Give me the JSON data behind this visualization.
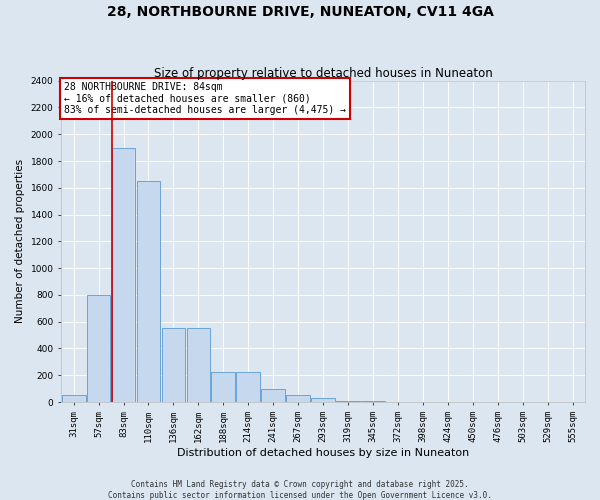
{
  "title": "28, NORTHBOURNE DRIVE, NUNEATON, CV11 4GA",
  "subtitle": "Size of property relative to detached houses in Nuneaton",
  "xlabel": "Distribution of detached houses by size in Nuneaton",
  "ylabel": "Number of detached properties",
  "categories": [
    "31sqm",
    "57sqm",
    "83sqm",
    "110sqm",
    "136sqm",
    "162sqm",
    "188sqm",
    "214sqm",
    "241sqm",
    "267sqm",
    "293sqm",
    "319sqm",
    "345sqm",
    "372sqm",
    "398sqm",
    "424sqm",
    "450sqm",
    "476sqm",
    "503sqm",
    "529sqm",
    "555sqm"
  ],
  "values": [
    50,
    800,
    1900,
    1650,
    550,
    550,
    225,
    225,
    100,
    55,
    30,
    8,
    5,
    3,
    2,
    1,
    1,
    0,
    0,
    0,
    0
  ],
  "bar_color": "#c5d8ee",
  "bar_edge_color": "#5b9bd5",
  "vline_color": "#cc0000",
  "annotation_text": "28 NORTHBOURNE DRIVE: 84sqm\n← 16% of detached houses are smaller (860)\n83% of semi-detached houses are larger (4,475) →",
  "annotation_box_facecolor": "#ffffff",
  "annotation_box_edgecolor": "#cc0000",
  "ylim": [
    0,
    2400
  ],
  "yticks": [
    0,
    200,
    400,
    600,
    800,
    1000,
    1200,
    1400,
    1600,
    1800,
    2000,
    2200,
    2400
  ],
  "background_color": "#dce6f1",
  "grid_color": "#ffffff",
  "footer_line1": "Contains HM Land Registry data © Crown copyright and database right 2025.",
  "footer_line2": "Contains public sector information licensed under the Open Government Licence v3.0.",
  "title_fontsize": 10,
  "subtitle_fontsize": 8.5,
  "tick_fontsize": 6.5,
  "ylabel_fontsize": 7.5,
  "xlabel_fontsize": 8,
  "annotation_fontsize": 7,
  "footer_fontsize": 5.5,
  "figsize": [
    6.0,
    5.0
  ],
  "dpi": 100
}
